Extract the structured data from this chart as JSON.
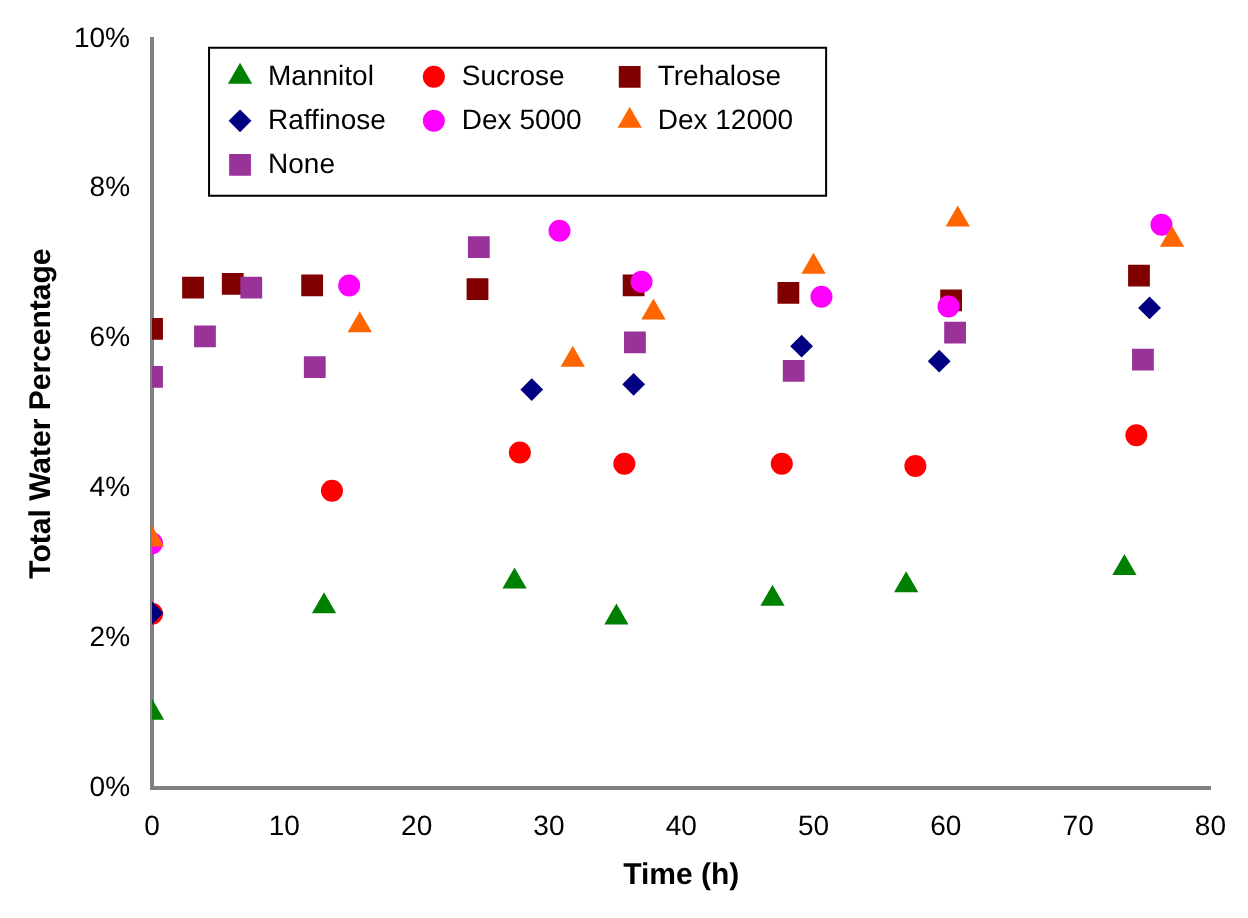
{
  "chart_data": {
    "type": "scatter",
    "xlabel": "Time (h)",
    "ylabel": "Total Water Percentage",
    "xlim": [
      0,
      80
    ],
    "xticks": [
      0,
      10,
      20,
      30,
      40,
      50,
      60,
      70,
      80
    ],
    "ylim": [
      0,
      10
    ],
    "yticks": [
      {
        "value": 0,
        "label": "0%"
      },
      {
        "value": 2,
        "label": "2%"
      },
      {
        "value": 4,
        "label": "4%"
      },
      {
        "value": 6,
        "label": "6%"
      },
      {
        "value": 8,
        "label": "8%"
      },
      {
        "value": 10,
        "label": "10%"
      }
    ],
    "grid": false,
    "legend": "top left",
    "series": [
      {
        "name": "Mannitol",
        "color": "#008000",
        "marker": "triangle",
        "x": [
          0,
          13.0,
          27.4,
          35.1,
          46.9,
          57.0,
          73.5
        ],
        "values": [
          1.01,
          2.43,
          2.76,
          2.28,
          2.53,
          2.71,
          2.94
        ]
      },
      {
        "name": "Sucrose",
        "color": "#ff0000",
        "marker": "circle",
        "x": [
          0,
          13.6,
          27.8,
          35.7,
          47.6,
          57.7,
          74.4
        ],
        "values": [
          2.33,
          3.97,
          4.48,
          4.33,
          4.33,
          4.3,
          4.71
        ]
      },
      {
        "name": "Trehalose",
        "color": "#800000",
        "marker": "square",
        "x": [
          0,
          3.1,
          6.1,
          12.1,
          24.6,
          36.4,
          48.1,
          60.4,
          74.6
        ],
        "values": [
          6.13,
          6.68,
          6.73,
          6.71,
          6.66,
          6.71,
          6.61,
          6.51,
          6.84
        ]
      },
      {
        "name": "Raffinose",
        "color": "#000080",
        "marker": "diamond",
        "x": [
          0,
          28.7,
          36.4,
          49.1,
          59.5,
          75.4
        ],
        "values": [
          2.34,
          5.32,
          5.39,
          5.9,
          5.7,
          6.41
        ]
      },
      {
        "name": "Dex 5000",
        "color": "#ff00ff",
        "marker": "circle",
        "x": [
          0,
          14.9,
          30.8,
          37.0,
          50.6,
          60.2,
          76.3
        ],
        "values": [
          3.27,
          6.71,
          7.44,
          6.76,
          6.56,
          6.43,
          7.52
        ]
      },
      {
        "name": "Dex 12000",
        "color": "#ff6600",
        "marker": "triangle",
        "x": [
          0,
          15.7,
          31.8,
          37.9,
          50.0,
          60.9,
          77.1
        ],
        "values": [
          3.32,
          6.18,
          5.72,
          6.35,
          6.96,
          7.59,
          7.32
        ]
      },
      {
        "name": "None",
        "color": "#993399",
        "marker": "square",
        "x": [
          0,
          4.0,
          7.5,
          12.3,
          24.7,
          36.5,
          48.5,
          60.7,
          74.9
        ],
        "values": [
          5.49,
          6.03,
          6.68,
          5.62,
          7.22,
          5.95,
          5.57,
          6.08,
          5.72
        ]
      }
    ]
  }
}
